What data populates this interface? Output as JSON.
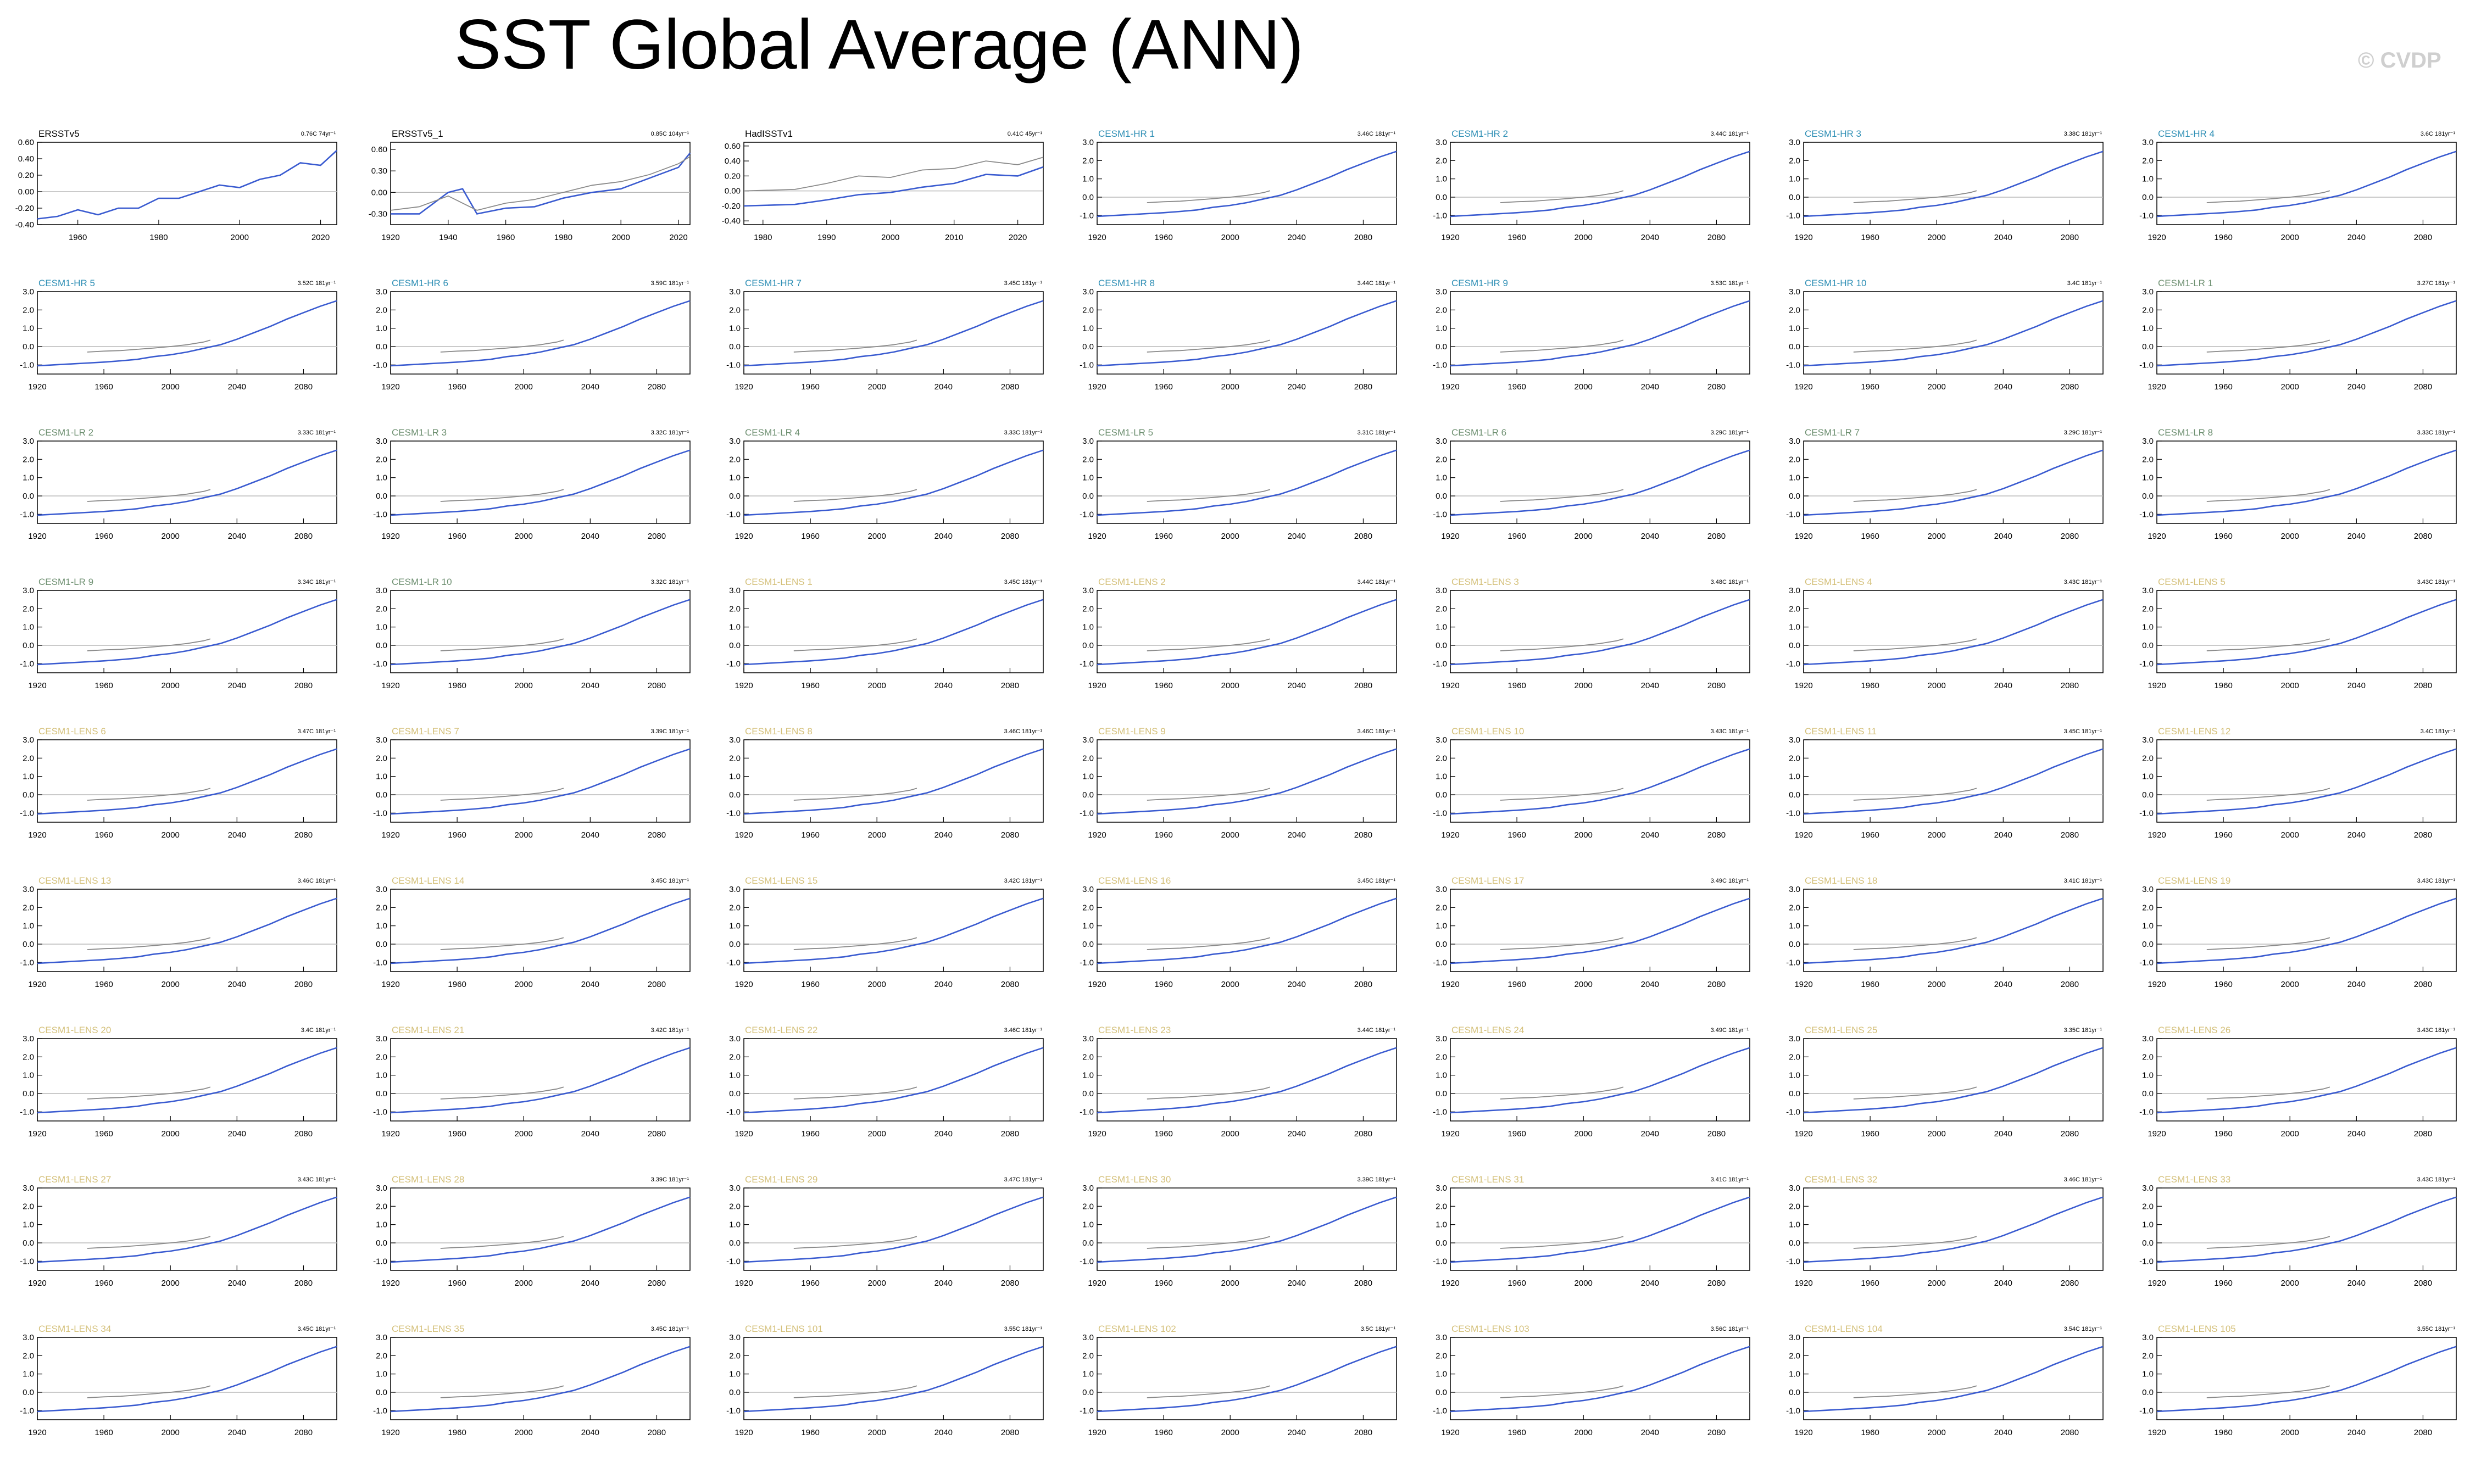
{
  "page": {
    "title": "SST Global Average (ANN)",
    "watermark": "© CVDP"
  },
  "colors": {
    "line": "#3a5bd0",
    "reference": "#8a8a8a",
    "zero": "#b9b9b9",
    "obs_title": "#000000",
    "hr_title": "#2f8fb5",
    "lr_title": "#6d8f70",
    "lens_title": "#d4c07a"
  },
  "chart_data": [
    {
      "type": "line",
      "title": "ERSSTv5",
      "group": "obs",
      "trend": "0.76C 74yr⁻¹",
      "xlim": [
        1950,
        2024
      ],
      "ylim": [
        -0.4,
        0.6
      ],
      "yticks": [
        -0.4,
        -0.2,
        0,
        0.2,
        0.4,
        0.6
      ],
      "ytick_labels": [
        "-0.40",
        "-0.20",
        "0.00",
        "0.20",
        "0.40",
        "0.60"
      ],
      "xticks": [
        1960,
        1980,
        2000,
        2020
      ],
      "series": [
        {
          "kind": "main",
          "x": [
            1950,
            1955,
            1960,
            1965,
            1970,
            1975,
            1980,
            1985,
            1990,
            1995,
            2000,
            2005,
            2010,
            2015,
            2020,
            2024
          ],
          "y": [
            -0.33,
            -0.3,
            -0.22,
            -0.28,
            -0.2,
            -0.2,
            -0.08,
            -0.08,
            0.0,
            0.08,
            0.05,
            0.15,
            0.2,
            0.35,
            0.32,
            0.5
          ]
        }
      ]
    },
    {
      "type": "line",
      "title": "ERSSTv5_1",
      "group": "obs",
      "trend": "0.85C 104yr⁻¹",
      "xlim": [
        1920,
        2024
      ],
      "ylim": [
        -0.45,
        0.7
      ],
      "yticks": [
        -0.3,
        0,
        0.3,
        0.6
      ],
      "ytick_labels": [
        "-0.30",
        "0.00",
        "0.30",
        "0.60"
      ],
      "xticks": [
        1920,
        1940,
        1960,
        1980,
        2000,
        2020
      ],
      "series": [
        {
          "kind": "main",
          "x": [
            1920,
            1930,
            1940,
            1945,
            1950,
            1960,
            1970,
            1980,
            1990,
            2000,
            2010,
            2020,
            2024
          ],
          "y": [
            -0.3,
            -0.3,
            0.0,
            0.05,
            -0.3,
            -0.22,
            -0.2,
            -0.08,
            0.0,
            0.05,
            0.2,
            0.35,
            0.55
          ]
        },
        {
          "kind": "reference",
          "x": [
            1920,
            1930,
            1940,
            1950,
            1960,
            1970,
            1980,
            1990,
            2000,
            2010,
            2020,
            2024
          ],
          "y": [
            -0.25,
            -0.2,
            -0.05,
            -0.25,
            -0.15,
            -0.1,
            0.0,
            0.1,
            0.15,
            0.25,
            0.4,
            0.5
          ]
        }
      ]
    },
    {
      "type": "line",
      "title": "HadISSTv1",
      "group": "obs",
      "trend": "0.41C 45yr⁻¹",
      "xlim": [
        1977,
        2024
      ],
      "ylim": [
        -0.45,
        0.65
      ],
      "yticks": [
        -0.4,
        -0.2,
        0,
        0.2,
        0.4,
        0.6
      ],
      "ytick_labels": [
        "-0.40",
        "-0.20",
        "0.00",
        "0.20",
        "0.40",
        "0.60"
      ],
      "xticks": [
        1980,
        1990,
        2000,
        2010,
        2020
      ],
      "series": [
        {
          "kind": "main",
          "x": [
            1977,
            1985,
            1990,
            1995,
            2000,
            2005,
            2010,
            2015,
            2020,
            2024
          ],
          "y": [
            -0.2,
            -0.18,
            -0.12,
            -0.05,
            -0.02,
            0.05,
            0.1,
            0.22,
            0.2,
            0.32
          ]
        },
        {
          "kind": "reference",
          "x": [
            1977,
            1985,
            1990,
            1995,
            2000,
            2005,
            2010,
            2015,
            2020,
            2024
          ],
          "y": [
            0.0,
            0.02,
            0.1,
            0.2,
            0.18,
            0.28,
            0.3,
            0.4,
            0.35,
            0.45
          ]
        }
      ]
    },
    {
      "title": "CESM1-HR 1",
      "group": "hr",
      "trend": "3.46C 181yr⁻¹"
    },
    {
      "title": "CESM1-HR 2",
      "group": "hr",
      "trend": "3.44C 181yr⁻¹"
    },
    {
      "title": "CESM1-HR 3",
      "group": "hr",
      "trend": "3.38C 181yr⁻¹"
    },
    {
      "title": "CESM1-HR 4",
      "group": "hr",
      "trend": "3.6C 181yr⁻¹"
    },
    {
      "title": "CESM1-HR 5",
      "group": "hr",
      "trend": "3.52C 181yr⁻¹"
    },
    {
      "title": "CESM1-HR 6",
      "group": "hr",
      "trend": "3.59C 181yr⁻¹"
    },
    {
      "title": "CESM1-HR 7",
      "group": "hr",
      "trend": "3.45C 181yr⁻¹"
    },
    {
      "title": "CESM1-HR 8",
      "group": "hr",
      "trend": "3.44C 181yr⁻¹"
    },
    {
      "title": "CESM1-HR 9",
      "group": "hr",
      "trend": "3.53C 181yr⁻¹"
    },
    {
      "title": "CESM1-HR 10",
      "group": "hr",
      "trend": "3.4C 181yr⁻¹"
    },
    {
      "title": "CESM1-LR 1",
      "group": "lr",
      "trend": "3.27C 181yr⁻¹"
    },
    {
      "title": "CESM1-LR 2",
      "group": "lr",
      "trend": "3.33C 181yr⁻¹"
    },
    {
      "title": "CESM1-LR 3",
      "group": "lr",
      "trend": "3.32C 181yr⁻¹"
    },
    {
      "title": "CESM1-LR 4",
      "group": "lr",
      "trend": "3.33C 181yr⁻¹"
    },
    {
      "title": "CESM1-LR 5",
      "group": "lr",
      "trend": "3.31C 181yr⁻¹"
    },
    {
      "title": "CESM1-LR 6",
      "group": "lr",
      "trend": "3.29C 181yr⁻¹"
    },
    {
      "title": "CESM1-LR 7",
      "group": "lr",
      "trend": "3.29C 181yr⁻¹"
    },
    {
      "title": "CESM1-LR 8",
      "group": "lr",
      "trend": "3.33C 181yr⁻¹"
    },
    {
      "title": "CESM1-LR 9",
      "group": "lr",
      "trend": "3.34C 181yr⁻¹"
    },
    {
      "title": "CESM1-LR 10",
      "group": "lr",
      "trend": "3.32C 181yr⁻¹"
    },
    {
      "title": "CESM1-LENS 1",
      "group": "lens",
      "trend": "3.45C 181yr⁻¹"
    },
    {
      "title": "CESM1-LENS 2",
      "group": "lens",
      "trend": "3.44C 181yr⁻¹"
    },
    {
      "title": "CESM1-LENS 3",
      "group": "lens",
      "trend": "3.48C 181yr⁻¹"
    },
    {
      "title": "CESM1-LENS 4",
      "group": "lens",
      "trend": "3.43C 181yr⁻¹"
    },
    {
      "title": "CESM1-LENS 5",
      "group": "lens",
      "trend": "3.43C 181yr⁻¹"
    },
    {
      "title": "CESM1-LENS 6",
      "group": "lens",
      "trend": "3.47C 181yr⁻¹"
    },
    {
      "title": "CESM1-LENS 7",
      "group": "lens",
      "trend": "3.39C 181yr⁻¹"
    },
    {
      "title": "CESM1-LENS 8",
      "group": "lens",
      "trend": "3.46C 181yr⁻¹"
    },
    {
      "title": "CESM1-LENS 9",
      "group": "lens",
      "trend": "3.46C 181yr⁻¹"
    },
    {
      "title": "CESM1-LENS 10",
      "group": "lens",
      "trend": "3.43C 181yr⁻¹"
    },
    {
      "title": "CESM1-LENS 11",
      "group": "lens",
      "trend": "3.45C 181yr⁻¹"
    },
    {
      "title": "CESM1-LENS 12",
      "group": "lens",
      "trend": "3.4C 181yr⁻¹"
    },
    {
      "title": "CESM1-LENS 13",
      "group": "lens",
      "trend": "3.46C 181yr⁻¹"
    },
    {
      "title": "CESM1-LENS 14",
      "group": "lens",
      "trend": "3.45C 181yr⁻¹"
    },
    {
      "title": "CESM1-LENS 15",
      "group": "lens",
      "trend": "3.42C 181yr⁻¹"
    },
    {
      "title": "CESM1-LENS 16",
      "group": "lens",
      "trend": "3.45C 181yr⁻¹"
    },
    {
      "title": "CESM1-LENS 17",
      "group": "lens",
      "trend": "3.49C 181yr⁻¹"
    },
    {
      "title": "CESM1-LENS 18",
      "group": "lens",
      "trend": "3.41C 181yr⁻¹"
    },
    {
      "title": "CESM1-LENS 19",
      "group": "lens",
      "trend": "3.43C 181yr⁻¹"
    },
    {
      "title": "CESM1-LENS 20",
      "group": "lens",
      "trend": "3.4C 181yr⁻¹"
    },
    {
      "title": "CESM1-LENS 21",
      "group": "lens",
      "trend": "3.42C 181yr⁻¹"
    },
    {
      "title": "CESM1-LENS 22",
      "group": "lens",
      "trend": "3.46C 181yr⁻¹"
    },
    {
      "title": "CESM1-LENS 23",
      "group": "lens",
      "trend": "3.44C 181yr⁻¹"
    },
    {
      "title": "CESM1-LENS 24",
      "group": "lens",
      "trend": "3.49C 181yr⁻¹"
    },
    {
      "title": "CESM1-LENS 25",
      "group": "lens",
      "trend": "3.35C 181yr⁻¹"
    },
    {
      "title": "CESM1-LENS 26",
      "group": "lens",
      "trend": "3.43C 181yr⁻¹"
    },
    {
      "title": "CESM1-LENS 27",
      "group": "lens",
      "trend": "3.43C 181yr⁻¹"
    },
    {
      "title": "CESM1-LENS 28",
      "group": "lens",
      "trend": "3.39C 181yr⁻¹"
    },
    {
      "title": "CESM1-LENS 29",
      "group": "lens",
      "trend": "3.47C 181yr⁻¹"
    },
    {
      "title": "CESM1-LENS 30",
      "group": "lens",
      "trend": "3.39C 181yr⁻¹"
    },
    {
      "title": "CESM1-LENS 31",
      "group": "lens",
      "trend": "3.41C 181yr⁻¹"
    },
    {
      "title": "CESM1-LENS 32",
      "group": "lens",
      "trend": "3.46C 181yr⁻¹"
    },
    {
      "title": "CESM1-LENS 33",
      "group": "lens",
      "trend": "3.43C 181yr⁻¹"
    },
    {
      "title": "CESM1-LENS 34",
      "group": "lens",
      "trend": "3.45C 181yr⁻¹"
    },
    {
      "title": "CESM1-LENS 35",
      "group": "lens",
      "trend": "3.45C 181yr⁻¹"
    },
    {
      "title": "CESM1-LENS 101",
      "group": "lens",
      "trend": "3.55C 181yr⁻¹"
    },
    {
      "title": "CESM1-LENS 102",
      "group": "lens",
      "trend": "3.5C 181yr⁻¹"
    },
    {
      "title": "CESM1-LENS 103",
      "group": "lens",
      "trend": "3.56C 181yr⁻¹"
    },
    {
      "title": "CESM1-LENS 104",
      "group": "lens",
      "trend": "3.54C 181yr⁻¹"
    },
    {
      "title": "CESM1-LENS 105",
      "group": "lens",
      "trend": "3.55C 181yr⁻¹"
    }
  ],
  "model_defaults": {
    "type": "line",
    "xlim": [
      1920,
      2100
    ],
    "ylim": [
      -1.5,
      3.0
    ],
    "yticks": [
      -1.0,
      0.0,
      1.0,
      2.0,
      3.0
    ],
    "ytick_labels": [
      "-1.0",
      "0.0",
      "1.0",
      "2.0",
      "3.0"
    ],
    "xticks": [
      1920,
      1960,
      2000,
      2040,
      2080
    ],
    "main": {
      "x": [
        1920,
        1930,
        1940,
        1950,
        1960,
        1970,
        1980,
        1990,
        2000,
        2010,
        2020,
        2030,
        2040,
        2050,
        2060,
        2070,
        2080,
        2090,
        2100
      ],
      "y": [
        -1.05,
        -1.0,
        -0.95,
        -0.9,
        -0.85,
        -0.78,
        -0.7,
        -0.55,
        -0.45,
        -0.3,
        -0.1,
        0.1,
        0.4,
        0.75,
        1.1,
        1.5,
        1.85,
        2.2,
        2.5
      ]
    },
    "reference": {
      "x": [
        1950,
        1960,
        1970,
        1980,
        1990,
        2000,
        2010,
        2020,
        2024
      ],
      "y": [
        -0.3,
        -0.25,
        -0.22,
        -0.15,
        -0.08,
        0.0,
        0.1,
        0.25,
        0.35
      ]
    }
  }
}
